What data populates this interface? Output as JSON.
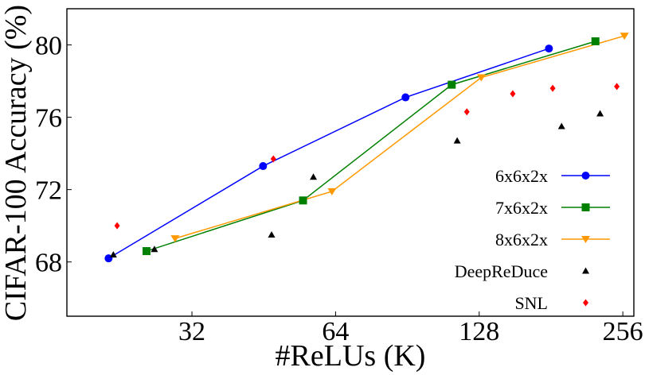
{
  "chart_data": {
    "type": "scatter",
    "xlabel": "#ReLUs (K)",
    "ylabel": "CIFAR-100 Accuracy (%)",
    "x_scale": "log2",
    "xlim": [
      17.5,
      270
    ],
    "ylim": [
      65.0,
      82.0
    ],
    "x_ticks": [
      32,
      64,
      128,
      256
    ],
    "x_tick_labels": [
      "32",
      "64",
      "128",
      "256"
    ],
    "y_ticks": [
      68,
      72,
      76,
      80
    ],
    "y_tick_labels": [
      "68",
      "72",
      "76",
      "80"
    ],
    "grid": false,
    "legend_position": "lower-right",
    "series": [
      {
        "name": "6x6x2x",
        "color": "#0000ff",
        "marker": "circle",
        "line": true,
        "x": [
          21.4,
          45.1,
          89.7,
          179.2
        ],
        "y": [
          68.2,
          73.3,
          77.1,
          79.8
        ]
      },
      {
        "name": "7x6x2x",
        "color": "#008000",
        "marker": "square",
        "line": true,
        "x": [
          25.7,
          54.7,
          112.1,
          224.3
        ],
        "y": [
          68.6,
          71.4,
          77.8,
          80.2
        ]
      },
      {
        "name": "8x6x2x",
        "color": "#ff9900",
        "marker": "triangle-down",
        "line": true,
        "x": [
          29.5,
          62.9,
          129.3,
          258.0
        ],
        "y": [
          69.3,
          71.9,
          78.2,
          80.5
        ]
      },
      {
        "name": "DeepReDuce",
        "color": "#000000",
        "marker": "triangle-up",
        "line": false,
        "x": [
          21.9,
          26.7,
          47.0,
          57.5,
          115.1,
          190.5,
          229.4
        ],
        "y": [
          68.4,
          68.7,
          69.5,
          72.7,
          74.7,
          75.5,
          76.2
        ]
      },
      {
        "name": "SNL",
        "color": "#ff0000",
        "marker": "diamond",
        "line": false,
        "x": [
          22.3,
          47.4,
          120.6,
          150.5,
          182.5,
          248.7
        ],
        "y": [
          70.0,
          73.7,
          76.3,
          77.3,
          77.6,
          77.7
        ]
      }
    ]
  }
}
